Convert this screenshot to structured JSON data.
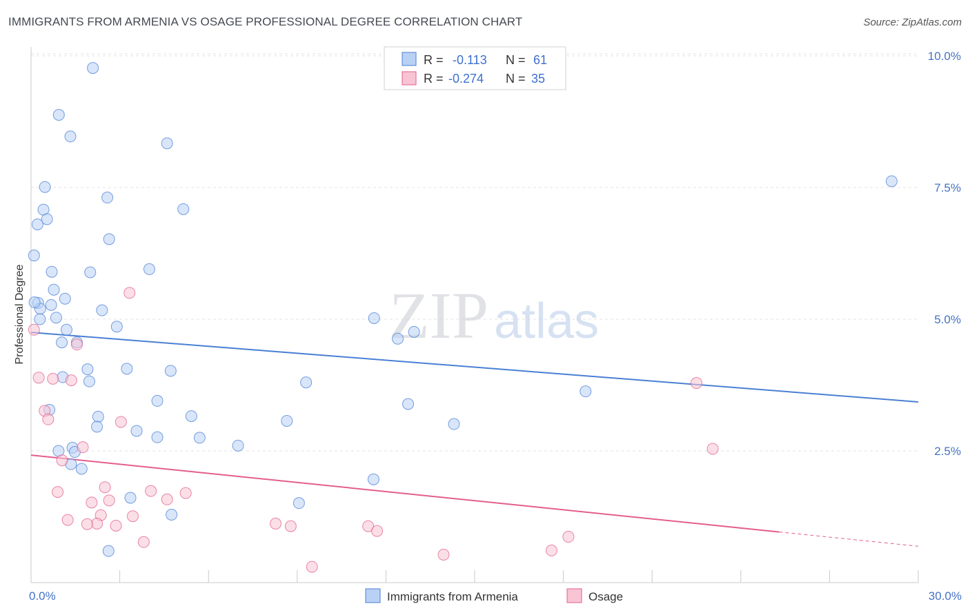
{
  "title": "IMMIGRANTS FROM ARMENIA VS OSAGE PROFESSIONAL DEGREE CORRELATION CHART",
  "source": "Source: ZipAtlas.com",
  "watermark": {
    "zip": "ZIP",
    "atlas": "atlas"
  },
  "colors": {
    "blue": "#4a7fd4",
    "blue_fill": "#b9d1f5",
    "pink": "#e35d8e",
    "pink_fill": "#f8c4d4",
    "tick": "#4472c4"
  },
  "stats": [
    {
      "r_label": "R =",
      "r": "-0.113",
      "n_label": "N =",
      "n": "61"
    },
    {
      "r_label": "R =",
      "r": "-0.274",
      "n_label": "N =",
      "n": "35"
    }
  ],
  "legend": [
    "Immigrants from Armenia",
    "Osage"
  ],
  "chart_data": {
    "type": "scatter",
    "ylabel": "Professional Degree",
    "xlim": [
      0,
      30
    ],
    "ylim": [
      0,
      10.5
    ],
    "x_ticks": [
      {
        "value": 0,
        "label": "0.0%"
      },
      {
        "value": 30,
        "label": "30.0%"
      }
    ],
    "y_ticks": [
      {
        "value": 2.5,
        "label": "2.5%"
      },
      {
        "value": 5.0,
        "label": "5.0%"
      },
      {
        "value": 7.5,
        "label": "7.5%"
      },
      {
        "value": 10.0,
        "label": "10.0%"
      }
    ],
    "series": [
      {
        "name": "Immigrants from Armenia",
        "color": "#4a7fd4",
        "trend": {
          "x": [
            0,
            30
          ],
          "y": [
            4.75,
            3.43
          ]
        },
        "points": [
          [
            2.09,
            9.77
          ],
          [
            0.94,
            8.88
          ],
          [
            1.33,
            8.47
          ],
          [
            4.6,
            8.34
          ],
          [
            0.47,
            7.51
          ],
          [
            2.58,
            7.31
          ],
          [
            5.15,
            7.09
          ],
          [
            0.42,
            7.08
          ],
          [
            0.54,
            6.9
          ],
          [
            0.22,
            6.8
          ],
          [
            2.64,
            6.52
          ],
          [
            0.1,
            6.21
          ],
          [
            4.0,
            5.95
          ],
          [
            0.7,
            5.9
          ],
          [
            2.0,
            5.89
          ],
          [
            0.77,
            5.56
          ],
          [
            1.15,
            5.39
          ],
          [
            0.24,
            5.31
          ],
          [
            0.68,
            5.27
          ],
          [
            0.31,
            5.2
          ],
          [
            2.4,
            5.17
          ],
          [
            0.3,
            5.0
          ],
          [
            0.85,
            5.03
          ],
          [
            11.6,
            5.02
          ],
          [
            2.9,
            4.86
          ],
          [
            1.2,
            4.8
          ],
          [
            12.95,
            4.76
          ],
          [
            12.4,
            4.63
          ],
          [
            1.04,
            4.56
          ],
          [
            1.55,
            4.56
          ],
          [
            29.1,
            7.62
          ],
          [
            1.91,
            4.05
          ],
          [
            3.24,
            4.06
          ],
          [
            4.72,
            4.02
          ],
          [
            1.07,
            3.9
          ],
          [
            1.97,
            3.82
          ],
          [
            9.3,
            3.8
          ],
          [
            18.75,
            3.63
          ],
          [
            4.27,
            3.45
          ],
          [
            12.75,
            3.39
          ],
          [
            0.62,
            3.28
          ],
          [
            2.27,
            3.15
          ],
          [
            5.42,
            3.16
          ],
          [
            8.65,
            3.07
          ],
          [
            14.3,
            3.01
          ],
          [
            2.23,
            2.96
          ],
          [
            3.57,
            2.88
          ],
          [
            4.27,
            2.76
          ],
          [
            5.7,
            2.75
          ],
          [
            7.0,
            2.6
          ],
          [
            1.4,
            2.56
          ],
          [
            0.93,
            2.5
          ],
          [
            1.48,
            2.48
          ],
          [
            1.35,
            2.25
          ],
          [
            1.71,
            2.16
          ],
          [
            11.58,
            1.96
          ],
          [
            3.36,
            1.61
          ],
          [
            9.06,
            1.51
          ],
          [
            4.75,
            1.29
          ],
          [
            2.62,
            0.6
          ],
          [
            0.12,
            5.32
          ]
        ]
      },
      {
        "name": "Osage",
        "color": "#e35d8e",
        "trend": {
          "x": [
            0,
            30
          ],
          "y": [
            2.42,
            0.69
          ]
        },
        "points": [
          [
            3.33,
            5.5
          ],
          [
            0.1,
            4.8
          ],
          [
            1.55,
            4.52
          ],
          [
            0.26,
            3.89
          ],
          [
            0.74,
            3.87
          ],
          [
            1.36,
            3.84
          ],
          [
            22.5,
            3.79
          ],
          [
            0.46,
            3.26
          ],
          [
            0.58,
            3.1
          ],
          [
            3.04,
            3.05
          ],
          [
            1.75,
            2.57
          ],
          [
            23.05,
            2.54
          ],
          [
            1.05,
            2.32
          ],
          [
            0.9,
            1.72
          ],
          [
            2.5,
            1.81
          ],
          [
            4.05,
            1.74
          ],
          [
            5.23,
            1.7
          ],
          [
            2.05,
            1.52
          ],
          [
            2.64,
            1.56
          ],
          [
            4.6,
            1.58
          ],
          [
            2.36,
            1.28
          ],
          [
            3.44,
            1.26
          ],
          [
            1.24,
            1.19
          ],
          [
            2.23,
            1.12
          ],
          [
            1.9,
            1.11
          ],
          [
            2.87,
            1.08
          ],
          [
            8.27,
            1.12
          ],
          [
            8.78,
            1.07
          ],
          [
            11.4,
            1.07
          ],
          [
            11.7,
            0.98
          ],
          [
            3.81,
            0.77
          ],
          [
            18.17,
            0.87
          ],
          [
            9.5,
            0.3
          ],
          [
            13.95,
            0.53
          ],
          [
            17.6,
            0.61
          ]
        ]
      }
    ]
  }
}
